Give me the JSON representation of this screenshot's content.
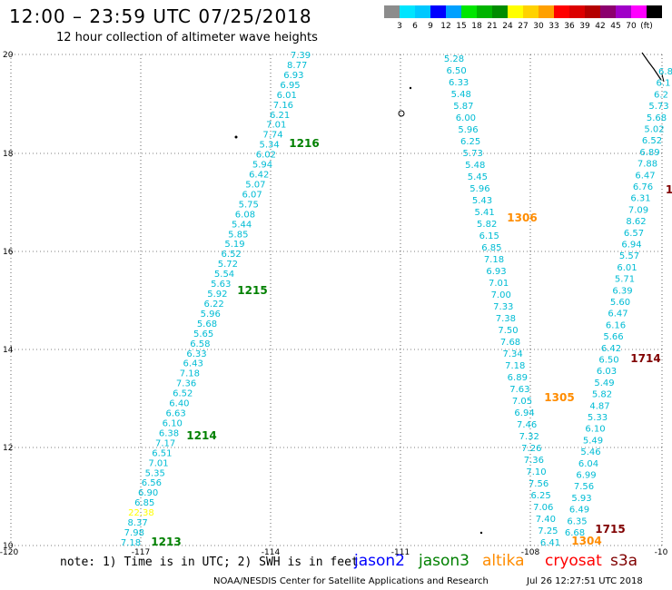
{
  "title": "12:00 – 23:59 UTC 07/25/2018",
  "subtitle": "12 hour collection of altimeter wave heights",
  "colorbar": {
    "colors": [
      "#8c8c8c",
      "#00e5ff",
      "#00c8ff",
      "#0000ff",
      "#00a0ff",
      "#00e600",
      "#00b400",
      "#008c00",
      "#ffff00",
      "#ffd200",
      "#ffa000",
      "#ff0000",
      "#dc0000",
      "#b40000",
      "#8c006e",
      "#a000c8",
      "#ff00ff",
      "#000000"
    ],
    "labels": [
      "3",
      "6",
      "9",
      "12",
      "15",
      "18",
      "21",
      "24",
      "27",
      "30",
      "33",
      "36",
      "39",
      "42",
      "45",
      "70",
      "(ft)"
    ]
  },
  "axes": {
    "lon_ticks": [
      "-120",
      "-117",
      "-114",
      "-111",
      "-108",
      "-10"
    ],
    "lat_ticks": [
      "20",
      "18",
      "16",
      "14",
      "12",
      "10"
    ]
  },
  "track_times": [
    {
      "text": "1216",
      "color": "#008000"
    },
    {
      "text": "1215",
      "color": "#008000"
    },
    {
      "text": "1214",
      "color": "#008000"
    },
    {
      "text": "1213",
      "color": "#008000"
    },
    {
      "text": "1306",
      "color": "#ff8c00"
    },
    {
      "text": "1305",
      "color": "#ff8c00"
    },
    {
      "text": "1304",
      "color": "#ff8c00"
    },
    {
      "text": "1714",
      "color": "#800000"
    },
    {
      "text": "1715",
      "color": "#800000"
    },
    {
      "text": "1",
      "color": "#800000"
    }
  ],
  "tracks": {
    "jason3": {
      "color": "#00bcd4",
      "values": [
        "7.39",
        "8.77",
        "6.93",
        "6.95",
        "6.01",
        "7.16",
        "6.21",
        "7.01",
        "7.74",
        "5.34",
        "6.02",
        "5.94",
        "6.42",
        "5.07",
        "6.07",
        "5.75",
        "6.08",
        "5.44",
        "5.85",
        "5.19",
        "6.52",
        "5.72",
        "5.54",
        "5.63",
        "5.92",
        "6.22",
        "5.96",
        "5.68",
        "5.65",
        "6.58",
        "6.33",
        "6.43",
        "7.18",
        "7.36",
        "6.52",
        "6.40",
        "6.63",
        "6.10",
        "6.38",
        "7.17",
        "6.51",
        "7.01",
        "5.35",
        "6.56",
        "6.90",
        "6.85",
        "22.38",
        "8.37",
        "7.98",
        "7.18"
      ],
      "highlight_value": "22.38",
      "highlight_color": "#ffff00"
    },
    "altika": {
      "color": "#00bcd4",
      "values": [
        "5.28",
        "6.50",
        "6.33",
        "5.48",
        "5.87",
        "6.00",
        "5.96",
        "6.25",
        "5.73",
        "5.48",
        "5.45",
        "5.96",
        "5.43",
        "5.41",
        "5.82",
        "6.15",
        "6.85",
        "7.18",
        "6.93",
        "7.01",
        "7.00",
        "7.33",
        "7.38",
        "7.50",
        "7.68",
        "7.34",
        "7.18",
        "6.89",
        "7.63",
        "7.05",
        "6.94",
        "7.46",
        "7.32",
        "7.26",
        "7.36",
        "7.10",
        "7.56",
        "6.25",
        "7.06",
        "7.40",
        "7.25",
        "6.41"
      ]
    },
    "s3a": {
      "color": "#00bcd4",
      "values": [
        "6.8",
        "6.1",
        "6.2",
        "5.73",
        "5.68",
        "5.02",
        "6.52",
        "6.89",
        "7.88",
        "6.47",
        "6.76",
        "6.31",
        "7.09",
        "8.62",
        "6.57",
        "6.94",
        "5.57",
        "6.01",
        "5.71",
        "6.39",
        "5.60",
        "6.47",
        "6.16",
        "5.66",
        "6.42",
        "6.50",
        "6.03",
        "5.49",
        "5.82",
        "4.87",
        "5.33",
        "6.10",
        "5.49",
        "5.46",
        "6.04",
        "6.99",
        "7.56",
        "5.93",
        "6.49",
        "6.35",
        "6.68"
      ]
    }
  },
  "note": "note: 1) Time is in UTC; 2) SWH is in feet",
  "satellites": [
    {
      "name": "jason2",
      "color": "#0000ff"
    },
    {
      "name": "jason3",
      "color": "#008000"
    },
    {
      "name": "altika",
      "color": "#ff8c00"
    },
    {
      "name": "cryosat",
      "color": "#ff0000"
    },
    {
      "name": "s3a",
      "color": "#800000"
    }
  ],
  "footer": "NOAA/NESDIS Center for Satellite Applications and Research",
  "timestamp": "Jul 26 12:27:51 UTC 2018"
}
